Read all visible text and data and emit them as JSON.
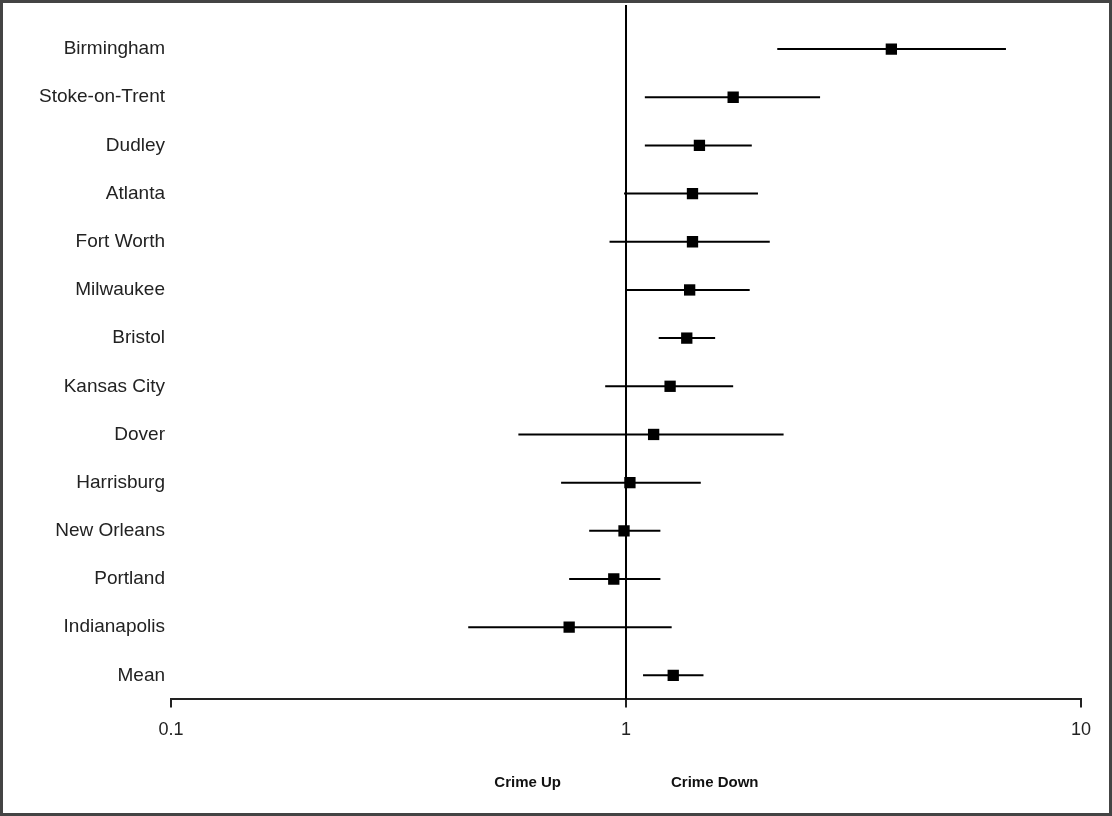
{
  "chart_data": {
    "type": "scatter",
    "orientation": "horizontal",
    "log": "x",
    "categories": [
      "Birmingham",
      "Stoke-on-Trent",
      "Dudley",
      "Atlanta",
      "Fort Worth",
      "Milwaukee",
      "Bristol",
      "Kansas City",
      "Dover",
      "Harrisburg",
      "New Orleans",
      "Portland",
      "Indianapolis",
      "Mean"
    ],
    "values": [
      3.83,
      1.72,
      1.45,
      1.4,
      1.4,
      1.38,
      1.36,
      1.25,
      1.15,
      1.02,
      0.99,
      0.94,
      0.75,
      1.27
    ],
    "errors": [
      [
        2.15,
        6.84
      ],
      [
        1.1,
        2.67
      ],
      [
        1.1,
        1.89
      ],
      [
        0.99,
        1.95
      ],
      [
        0.92,
        2.07
      ],
      [
        1.0,
        1.87
      ],
      [
        1.18,
        1.57
      ],
      [
        0.9,
        1.72
      ],
      [
        0.58,
        2.22
      ],
      [
        0.72,
        1.46
      ],
      [
        0.83,
        1.19
      ],
      [
        0.75,
        1.19
      ],
      [
        0.45,
        1.26
      ],
      [
        1.09,
        1.48
      ]
    ],
    "color": "#000000",
    "marker": "square",
    "xlim": [
      0.1,
      10
    ],
    "xticks": [
      0.1,
      1,
      10
    ],
    "ref_lines": [
      {
        "axis": "x",
        "value": 1,
        "color": "#000000"
      }
    ],
    "annotations": [
      "Crime Up",
      "Crime Down"
    ],
    "grid": false,
    "legend": false
  }
}
